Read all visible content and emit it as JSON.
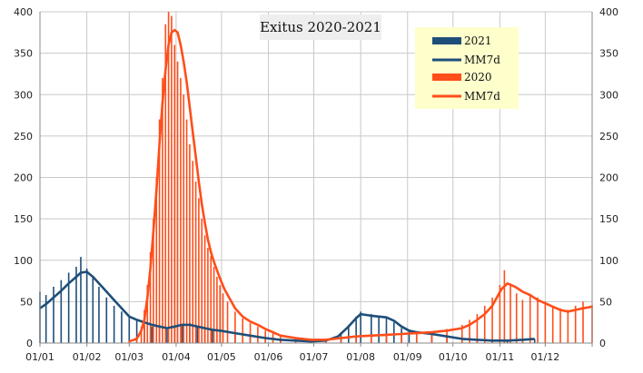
{
  "chart_data": {
    "type": "bar",
    "title": "Exitus 2020-2021",
    "x_labels": [
      "01/01",
      "01/02",
      "01/03",
      "01/04",
      "01/05",
      "01/06",
      "01/07",
      "01/08",
      "01/09",
      "01/10",
      "01/11",
      "01/12"
    ],
    "x_label_day_of_year": [
      1,
      32,
      60,
      91,
      121,
      152,
      182,
      213,
      244,
      274,
      305,
      335
    ],
    "x_range_days": [
      1,
      366
    ],
    "ylim": [
      0,
      400
    ],
    "y_ticks": [
      0,
      50,
      100,
      150,
      200,
      250,
      300,
      350,
      400
    ],
    "y_ticks_right": [
      0,
      50,
      100,
      150,
      200,
      250,
      300,
      350,
      400
    ],
    "grid": true,
    "legend_position": "top-right",
    "series": [
      {
        "name": "2021",
        "kind": "bar",
        "color": "#1f4e79",
        "points": [
          [
            1,
            62
          ],
          [
            5,
            58
          ],
          [
            10,
            68
          ],
          [
            15,
            76
          ],
          [
            20,
            85
          ],
          [
            25,
            92
          ],
          [
            28,
            104
          ],
          [
            32,
            90
          ],
          [
            36,
            80
          ],
          [
            40,
            68
          ],
          [
            45,
            55
          ],
          [
            50,
            45
          ],
          [
            55,
            38
          ],
          [
            60,
            32
          ],
          [
            65,
            28
          ],
          [
            70,
            22
          ],
          [
            75,
            20
          ],
          [
            80,
            18
          ],
          [
            85,
            18
          ],
          [
            90,
            20
          ],
          [
            95,
            22
          ],
          [
            100,
            25
          ],
          [
            105,
            20
          ],
          [
            110,
            18
          ],
          [
            115,
            15
          ],
          [
            120,
            14
          ],
          [
            130,
            12
          ],
          [
            140,
            10
          ],
          [
            150,
            6
          ],
          [
            160,
            4
          ],
          [
            170,
            3
          ],
          [
            180,
            2
          ],
          [
            190,
            3
          ],
          [
            200,
            12
          ],
          [
            205,
            22
          ],
          [
            210,
            32
          ],
          [
            213,
            38
          ],
          [
            220,
            35
          ],
          [
            225,
            32
          ],
          [
            230,
            30
          ],
          [
            235,
            25
          ],
          [
            240,
            18
          ],
          [
            245,
            14
          ],
          [
            250,
            12
          ],
          [
            260,
            10
          ],
          [
            270,
            8
          ],
          [
            280,
            6
          ],
          [
            290,
            4
          ],
          [
            300,
            3
          ],
          [
            310,
            4
          ],
          [
            320,
            5
          ],
          [
            328,
            5
          ]
        ]
      },
      {
        "name": "MM7d",
        "kind": "line",
        "color": "#1f4e79",
        "points": [
          [
            1,
            42
          ],
          [
            5,
            47
          ],
          [
            10,
            55
          ],
          [
            15,
            63
          ],
          [
            20,
            72
          ],
          [
            25,
            80
          ],
          [
            28,
            85
          ],
          [
            32,
            86
          ],
          [
            36,
            80
          ],
          [
            40,
            72
          ],
          [
            45,
            62
          ],
          [
            50,
            52
          ],
          [
            55,
            42
          ],
          [
            60,
            32
          ],
          [
            65,
            28
          ],
          [
            70,
            25
          ],
          [
            75,
            22
          ],
          [
            80,
            20
          ],
          [
            85,
            18
          ],
          [
            90,
            20
          ],
          [
            95,
            22
          ],
          [
            100,
            22
          ],
          [
            105,
            20
          ],
          [
            110,
            18
          ],
          [
            115,
            16
          ],
          [
            120,
            15
          ],
          [
            130,
            12
          ],
          [
            140,
            9
          ],
          [
            150,
            6
          ],
          [
            160,
            4
          ],
          [
            170,
            3
          ],
          [
            180,
            2
          ],
          [
            190,
            3
          ],
          [
            198,
            8
          ],
          [
            205,
            20
          ],
          [
            210,
            30
          ],
          [
            213,
            35
          ],
          [
            220,
            33
          ],
          [
            225,
            32
          ],
          [
            230,
            31
          ],
          [
            235,
            27
          ],
          [
            240,
            20
          ],
          [
            245,
            15
          ],
          [
            250,
            13
          ],
          [
            260,
            11
          ],
          [
            270,
            8
          ],
          [
            280,
            5
          ],
          [
            290,
            4
          ],
          [
            300,
            3
          ],
          [
            310,
            3
          ],
          [
            320,
            4
          ],
          [
            328,
            5
          ]
        ]
      },
      {
        "name": "2020",
        "kind": "bar",
        "color": "#ff4e1a",
        "points": [
          [
            60,
            2
          ],
          [
            65,
            5
          ],
          [
            68,
            20
          ],
          [
            70,
            40
          ],
          [
            72,
            70
          ],
          [
            74,
            110
          ],
          [
            76,
            150
          ],
          [
            78,
            200
          ],
          [
            80,
            270
          ],
          [
            82,
            320
          ],
          [
            84,
            385
          ],
          [
            86,
            400
          ],
          [
            88,
            395
          ],
          [
            90,
            360
          ],
          [
            92,
            340
          ],
          [
            94,
            320
          ],
          [
            96,
            300
          ],
          [
            98,
            270
          ],
          [
            100,
            240
          ],
          [
            102,
            220
          ],
          [
            104,
            195
          ],
          [
            106,
            175
          ],
          [
            108,
            150
          ],
          [
            110,
            130
          ],
          [
            112,
            115
          ],
          [
            114,
            105
          ],
          [
            116,
            92
          ],
          [
            118,
            80
          ],
          [
            120,
            70
          ],
          [
            122,
            60
          ],
          [
            125,
            50
          ],
          [
            130,
            38
          ],
          [
            135,
            30
          ],
          [
            140,
            24
          ],
          [
            145,
            20
          ],
          [
            150,
            15
          ],
          [
            155,
            12
          ],
          [
            160,
            8
          ],
          [
            170,
            5
          ],
          [
            180,
            3
          ],
          [
            190,
            3
          ],
          [
            200,
            4
          ],
          [
            210,
            6
          ],
          [
            220,
            8
          ],
          [
            230,
            10
          ],
          [
            240,
            12
          ],
          [
            250,
            13
          ],
          [
            260,
            14
          ],
          [
            270,
            17
          ],
          [
            280,
            22
          ],
          [
            285,
            28
          ],
          [
            290,
            35
          ],
          [
            295,
            45
          ],
          [
            300,
            55
          ],
          [
            305,
            70
          ],
          [
            308,
            88
          ],
          [
            312,
            72
          ],
          [
            316,
            60
          ],
          [
            320,
            52
          ],
          [
            325,
            58
          ],
          [
            330,
            55
          ],
          [
            335,
            50
          ],
          [
            340,
            45
          ],
          [
            345,
            42
          ],
          [
            350,
            40
          ],
          [
            355,
            45
          ],
          [
            360,
            50
          ],
          [
            366,
            46
          ]
        ]
      },
      {
        "name": "MM7d",
        "kind": "line",
        "color": "#ff4e1a",
        "points": [
          [
            60,
            2
          ],
          [
            65,
            5
          ],
          [
            68,
            15
          ],
          [
            70,
            28
          ],
          [
            72,
            55
          ],
          [
            74,
            90
          ],
          [
            76,
            135
          ],
          [
            78,
            185
          ],
          [
            80,
            240
          ],
          [
            82,
            290
          ],
          [
            84,
            330
          ],
          [
            86,
            360
          ],
          [
            88,
            375
          ],
          [
            90,
            378
          ],
          [
            92,
            375
          ],
          [
            94,
            360
          ],
          [
            96,
            340
          ],
          [
            98,
            315
          ],
          [
            100,
            285
          ],
          [
            102,
            255
          ],
          [
            104,
            225
          ],
          [
            106,
            195
          ],
          [
            108,
            168
          ],
          [
            110,
            145
          ],
          [
            112,
            125
          ],
          [
            114,
            110
          ],
          [
            116,
            98
          ],
          [
            118,
            88
          ],
          [
            120,
            78
          ],
          [
            123,
            65
          ],
          [
            126,
            55
          ],
          [
            130,
            42
          ],
          [
            135,
            32
          ],
          [
            140,
            26
          ],
          [
            145,
            22
          ],
          [
            150,
            17
          ],
          [
            155,
            13
          ],
          [
            160,
            9
          ],
          [
            170,
            6
          ],
          [
            180,
            4
          ],
          [
            190,
            4
          ],
          [
            200,
            6
          ],
          [
            210,
            8
          ],
          [
            220,
            9
          ],
          [
            230,
            10
          ],
          [
            240,
            11
          ],
          [
            250,
            12
          ],
          [
            260,
            13
          ],
          [
            270,
            15
          ],
          [
            280,
            18
          ],
          [
            285,
            22
          ],
          [
            290,
            28
          ],
          [
            295,
            35
          ],
          [
            300,
            45
          ],
          [
            303,
            55
          ],
          [
            306,
            65
          ],
          [
            310,
            72
          ],
          [
            315,
            68
          ],
          [
            320,
            62
          ],
          [
            325,
            58
          ],
          [
            330,
            52
          ],
          [
            335,
            48
          ],
          [
            340,
            44
          ],
          [
            345,
            40
          ],
          [
            350,
            38
          ],
          [
            355,
            40
          ],
          [
            360,
            42
          ],
          [
            366,
            44
          ]
        ]
      }
    ]
  }
}
